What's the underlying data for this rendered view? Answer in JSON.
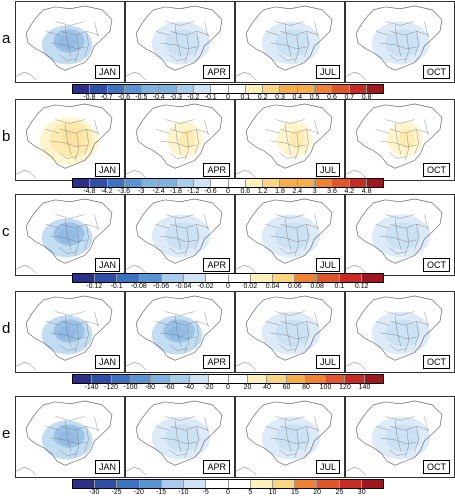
{
  "rows": [
    {
      "letter": "a",
      "months": [
        "JAN",
        "APR",
        "JUL",
        "OCT"
      ],
      "ticks": [
        "-0.8",
        "-0.7",
        "-0.6",
        "-0.5",
        "-0.4",
        "-0.3",
        "-0.2",
        "-0.1",
        "0",
        "0.1",
        "0.2",
        "0.3",
        "0.4",
        "0.5",
        "0.6",
        "0.7",
        "0.8"
      ],
      "fill": [
        "blue-strong",
        "blue-light",
        "blue-light",
        "blue-light"
      ]
    },
    {
      "letter": "b",
      "months": [
        "JAN",
        "APR",
        "JUL",
        "OCT"
      ],
      "ticks": [
        "-4.8",
        "-4.2",
        "-3.6",
        "-3",
        "-2.4",
        "-1.8",
        "-1.2",
        "-0.6",
        "0",
        "0.6",
        "1.2",
        "1.8",
        "2.4",
        "3",
        "3.6",
        "4.2",
        "4.8"
      ],
      "fill": [
        "red-strong",
        "orange-light",
        "orange-light",
        "orange-light"
      ]
    },
    {
      "letter": "c",
      "months": [
        "JAN",
        "APR",
        "JUL",
        "OCT"
      ],
      "ticks": [
        "-0.12",
        "-0.1",
        "-0.08",
        "-0.06",
        "-0.04",
        "-0.02",
        "0",
        "0.02",
        "0.04",
        "0.06",
        "0.08",
        "0.1",
        "0.12"
      ],
      "fill": [
        "blue-strong",
        "blue-light",
        "blue-light",
        "blue-light"
      ]
    },
    {
      "letter": "d",
      "months": [
        "JAN",
        "APR",
        "JUL",
        "OCT"
      ],
      "ticks": [
        "-140",
        "-120",
        "-100",
        "-80",
        "-60",
        "-40",
        "-20",
        "0",
        "20",
        "40",
        "60",
        "80",
        "100",
        "120",
        "140"
      ],
      "fill": [
        "blue-strong",
        "blue-strong",
        "blue-light",
        "blue-light"
      ]
    },
    {
      "letter": "e",
      "months": [
        "JAN",
        "APR",
        "JUL",
        "OCT"
      ],
      "ticks": [
        "-30",
        "-25",
        "-20",
        "-15",
        "-10",
        "-5",
        "0",
        "5",
        "10",
        "15",
        "20",
        "25",
        "30"
      ],
      "fill": [
        "blue-strong",
        "blue-light",
        "blue-light",
        "blue-light"
      ]
    }
  ],
  "colormap": [
    "#2b2f86",
    "#2d4fa8",
    "#3b73c0",
    "#5b94d2",
    "#80b2e0",
    "#a8cdec",
    "#cfe3f5",
    "#ffffff",
    "#ffffff",
    "#fdf0b8",
    "#fbd580",
    "#f6ae4b",
    "#ee8232",
    "#e0552a",
    "#c72b24",
    "#a0151e"
  ]
}
